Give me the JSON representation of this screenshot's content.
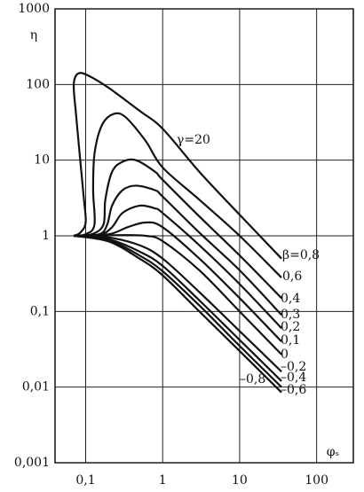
{
  "chart_data": {
    "type": "line",
    "annotation": "γ=20",
    "xlabel": "φₛ",
    "ylabel": "η",
    "xlog": true,
    "ylog": true,
    "grid": true,
    "color": "#111111",
    "xlim": [
      0.04,
      300
    ],
    "ylim": [
      0.001,
      1000
    ],
    "xticks": [
      {
        "value": 0.1,
        "label": "0,1"
      },
      1,
      10,
      100
    ],
    "yticks": [
      {
        "value": 0.001,
        "label": "0,001"
      },
      {
        "value": 0.01,
        "label": "0,01"
      },
      {
        "value": 0.1,
        "label": "0,1"
      },
      1,
      10,
      100,
      1000
    ],
    "series": [
      {
        "name": "β=0,8",
        "x": [
          0.07,
          0.085,
          0.1,
          0.095,
          0.085,
          0.075,
          0.07,
          0.08,
          0.11,
          0.2,
          0.5,
          1,
          3,
          10,
          35
        ],
        "values": [
          1,
          1.1,
          1.5,
          3,
          10,
          40,
          100,
          140,
          130,
          90,
          45,
          26,
          7,
          1.9,
          0.5
        ]
      },
      {
        "name": "0,6",
        "x": [
          0.07,
          0.1,
          0.13,
          0.125,
          0.13,
          0.16,
          0.22,
          0.32,
          0.6,
          1,
          3,
          10,
          35
        ],
        "values": [
          1,
          1.05,
          1.4,
          4,
          12,
          28,
          40,
          38,
          18,
          8,
          3,
          1,
          0.28
        ]
      },
      {
        "name": "0,4",
        "x": [
          0.07,
          0.12,
          0.17,
          0.18,
          0.22,
          0.3,
          0.45,
          0.8,
          1,
          3,
          10,
          35
        ],
        "values": [
          1,
          1.05,
          1.4,
          3,
          7,
          9.5,
          10,
          7,
          5.5,
          1.8,
          0.55,
          0.15
        ]
      },
      {
        "name": "0,3",
        "x": [
          0.07,
          0.15,
          0.19,
          0.22,
          0.3,
          0.45,
          0.8,
          1,
          3,
          10,
          35
        ],
        "values": [
          1,
          1.05,
          1.4,
          2.5,
          4,
          4.6,
          4,
          3.3,
          1.1,
          0.35,
          0.09
        ]
      },
      {
        "name": "0,2",
        "x": [
          0.07,
          0.15,
          0.22,
          0.3,
          0.5,
          0.8,
          1,
          3,
          10,
          35
        ],
        "values": [
          1,
          1.02,
          1.3,
          2,
          2.5,
          2.3,
          2,
          0.75,
          0.23,
          0.06
        ]
      },
      {
        "name": "0,1",
        "x": [
          0.07,
          0.2,
          0.35,
          0.6,
          1,
          3,
          10,
          35
        ],
        "values": [
          1,
          1.05,
          1.3,
          1.5,
          1.3,
          0.5,
          0.15,
          0.04
        ]
      },
      {
        "name": "0",
        "x": [
          0.07,
          0.3,
          0.6,
          1,
          3,
          10,
          35
        ],
        "values": [
          1,
          1.02,
          1,
          0.85,
          0.35,
          0.1,
          0.027
        ]
      },
      {
        "name": "–0,2",
        "x": [
          0.07,
          0.2,
          0.5,
          1,
          3,
          10,
          35
        ],
        "values": [
          1,
          0.95,
          0.75,
          0.5,
          0.18,
          0.055,
          0.016
        ]
      },
      {
        "name": "–0,4",
        "x": [
          0.07,
          0.2,
          0.5,
          1,
          3,
          10,
          35
        ],
        "values": [
          1,
          0.9,
          0.62,
          0.4,
          0.14,
          0.042,
          0.012
        ]
      },
      {
        "name": "–0,6",
        "x": [
          0.07,
          0.2,
          0.5,
          1,
          3,
          10,
          35
        ],
        "values": [
          1,
          0.87,
          0.55,
          0.34,
          0.12,
          0.035,
          0.01
        ]
      },
      {
        "name": "–0,8",
        "x": [
          0.07,
          0.2,
          0.5,
          1,
          3,
          10,
          35
        ],
        "values": [
          1,
          0.84,
          0.5,
          0.3,
          0.1,
          0.03,
          0.0085
        ]
      }
    ]
  }
}
